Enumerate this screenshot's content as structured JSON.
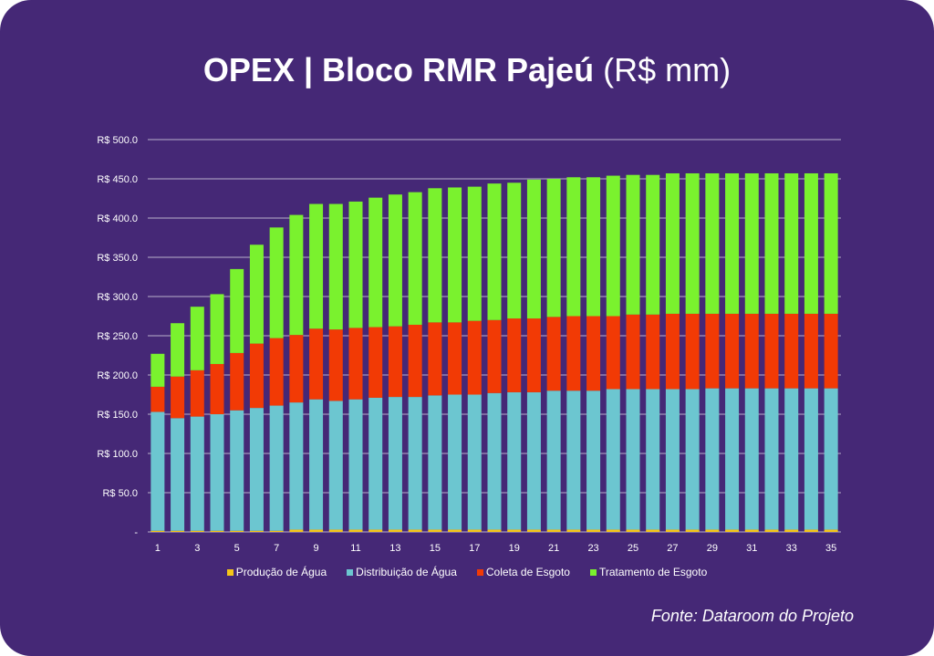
{
  "title_bold": "OPEX | Bloco RMR Pajeú",
  "title_unit": "(R$ mm)",
  "source": "Fonte: Dataroom do Projeto",
  "chart_data": {
    "type": "bar",
    "stacked": true,
    "title": "OPEX | Bloco RMR Pajeú (R$ mm)",
    "xlabel": "",
    "ylabel": "",
    "ylim": [
      0,
      500
    ],
    "yticks": [
      0,
      50,
      100,
      150,
      200,
      250,
      300,
      350,
      400,
      450,
      500
    ],
    "ytick_labels": [
      "-",
      "R$ 50.0",
      "R$ 100.0",
      "R$ 150.0",
      "R$ 200.0",
      "R$ 250.0",
      "R$ 300.0",
      "R$ 350.0",
      "R$ 400.0",
      "R$ 450.0",
      "R$ 500.0"
    ],
    "grid": true,
    "legend_position": "bottom",
    "categories": [
      1,
      2,
      3,
      4,
      5,
      6,
      7,
      8,
      9,
      10,
      11,
      12,
      13,
      14,
      15,
      16,
      17,
      18,
      19,
      20,
      21,
      22,
      23,
      24,
      25,
      26,
      27,
      28,
      29,
      30,
      31,
      32,
      33,
      34,
      35
    ],
    "xtick_labels": [
      "1",
      "3",
      "5",
      "7",
      "9",
      "11",
      "13",
      "15",
      "17",
      "19",
      "21",
      "23",
      "25",
      "27",
      "29",
      "31",
      "33",
      "35"
    ],
    "series": [
      {
        "name": "Produção de Água",
        "color": "#f5c518",
        "values": [
          1.5,
          1.5,
          1.5,
          1.5,
          1.5,
          1.5,
          1.5,
          3,
          3,
          3,
          3,
          3,
          3,
          3,
          3,
          3,
          3,
          3,
          3,
          3,
          3,
          3,
          3,
          3,
          3,
          3,
          3,
          3,
          3,
          3,
          3,
          3,
          3,
          3,
          3
        ]
      },
      {
        "name": "Distribuição de Água",
        "color": "#6cc6d0",
        "values": [
          151.5,
          143.5,
          145.5,
          148.5,
          153.5,
          156.5,
          159.5,
          162,
          166,
          164,
          166,
          168,
          169,
          169,
          171,
          172,
          172,
          174,
          175,
          175,
          177,
          177,
          177,
          179,
          179,
          179,
          179,
          179,
          180,
          180,
          180,
          180,
          180,
          180,
          180
        ]
      },
      {
        "name": "Coleta de Esgoto",
        "color": "#f23a05",
        "values": [
          32,
          53,
          59,
          64,
          73,
          82,
          86,
          86,
          90,
          91,
          91,
          90,
          90,
          92,
          93,
          92,
          94,
          93,
          94,
          94,
          94,
          95,
          95,
          93,
          95,
          95,
          96,
          96,
          95,
          95,
          95,
          95,
          95,
          95,
          95
        ]
      },
      {
        "name": "Tratamento de Esgoto",
        "color": "#7af22e",
        "values": [
          42,
          68,
          81,
          89,
          107,
          126,
          141,
          153,
          159,
          160,
          161,
          165,
          168,
          169,
          171,
          172,
          171,
          174,
          173,
          177,
          176,
          177,
          177,
          179,
          178,
          178,
          179,
          179,
          179,
          179,
          179,
          179,
          179,
          179,
          179
        ]
      }
    ]
  }
}
